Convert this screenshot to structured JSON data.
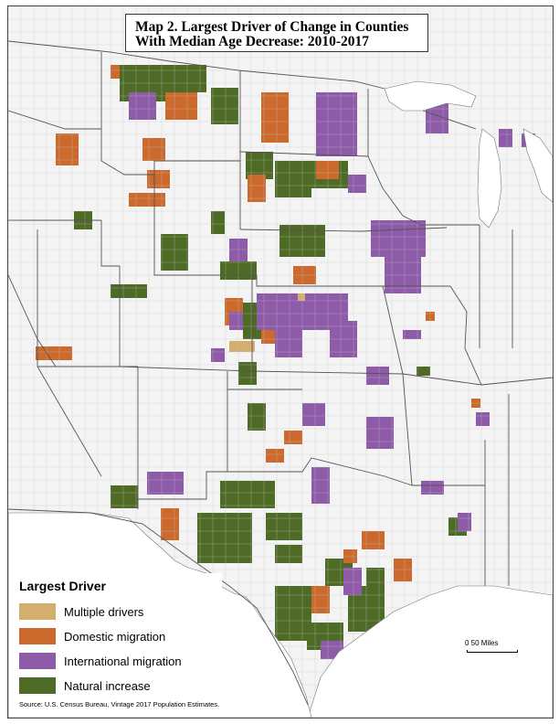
{
  "title": {
    "line1": "Map 2. Largest Driver of Change in Counties",
    "line2": "With Median Age Decrease: 2010-2017"
  },
  "legend": {
    "title": "Largest Driver",
    "items": [
      {
        "label": "Multiple drivers",
        "color": "#d3ae6e"
      },
      {
        "label": "Domestic migration",
        "color": "#cc6a2e"
      },
      {
        "label": "International migration",
        "color": "#8e5ba8"
      },
      {
        "label": "Natural increase",
        "color": "#4e6b25"
      }
    ]
  },
  "scale": {
    "label": "0     50 Miles"
  },
  "source": "Source: U.S. Census Bureau, Vintage 2017 Population Estimates.",
  "colors": {
    "background": "#f4f4f4",
    "state_border": "#555555",
    "county_border": "#c8c8c8",
    "water": "#ffffff"
  }
}
